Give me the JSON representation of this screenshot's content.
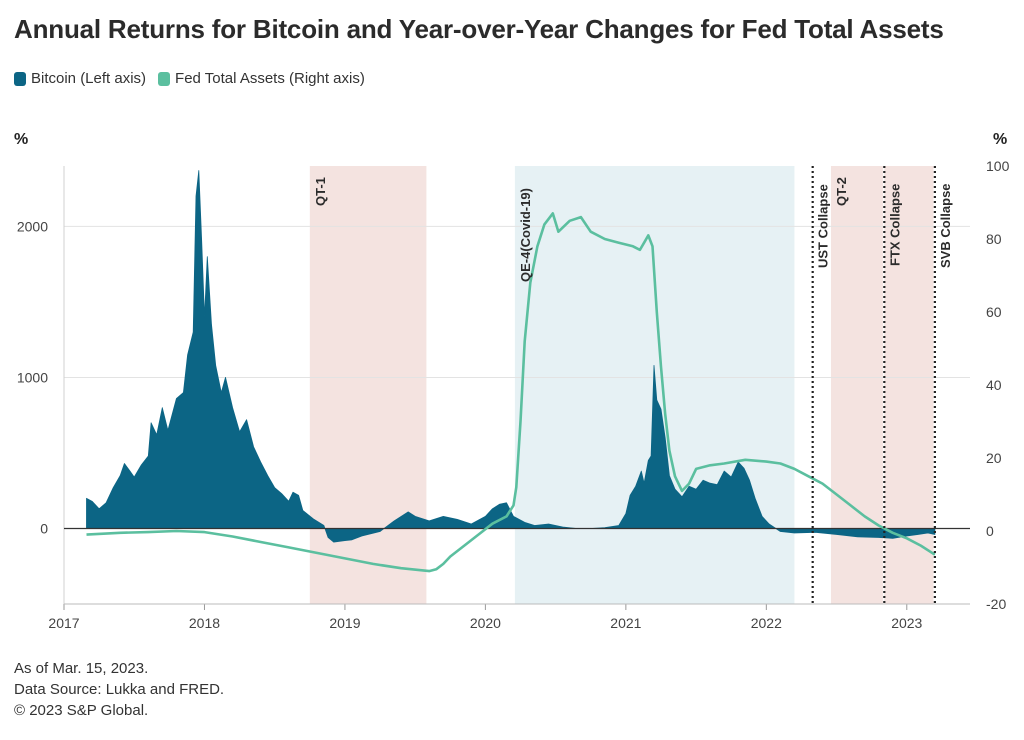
{
  "title": "Annual Returns for Bitcoin and Year-over-Year Changes for Fed Total Assets",
  "legend": [
    {
      "label": "Bitcoin (Left axis)",
      "color": "#0c6585"
    },
    {
      "label": "Fed Total Assets (Right axis)",
      "color": "#5bbf9f"
    }
  ],
  "footer": {
    "as_of": "As of Mar. 15, 2023.",
    "source": "Data Source: Lukka and FRED.",
    "copyright": "© 2023 S&P Global."
  },
  "chart_data": {
    "type": "area",
    "x_range": [
      2017.0,
      2023.45
    ],
    "x_ticks": [
      "2017",
      "2018",
      "2019",
      "2020",
      "2021",
      "2022",
      "2023"
    ],
    "left_axis": {
      "unit": "%",
      "ylim": [
        -500,
        2400
      ],
      "ticks": [
        0,
        1000,
        2000
      ]
    },
    "right_axis": {
      "unit": "%",
      "ylim": [
        -20,
        100
      ],
      "ticks": [
        -20,
        0,
        20,
        40,
        60,
        80,
        100
      ]
    },
    "series": [
      {
        "name": "Bitcoin (Left axis)",
        "axis": "left",
        "render": "area",
        "color": "#0c6585",
        "points": [
          [
            2017.16,
            200
          ],
          [
            2017.2,
            180
          ],
          [
            2017.25,
            130
          ],
          [
            2017.3,
            170
          ],
          [
            2017.35,
            270
          ],
          [
            2017.4,
            350
          ],
          [
            2017.43,
            430
          ],
          [
            2017.47,
            380
          ],
          [
            2017.5,
            340
          ],
          [
            2017.55,
            420
          ],
          [
            2017.6,
            480
          ],
          [
            2017.62,
            700
          ],
          [
            2017.66,
            620
          ],
          [
            2017.7,
            800
          ],
          [
            2017.74,
            650
          ],
          [
            2017.8,
            860
          ],
          [
            2017.85,
            900
          ],
          [
            2017.88,
            1150
          ],
          [
            2017.92,
            1300
          ],
          [
            2017.94,
            2200
          ],
          [
            2017.96,
            2370
          ],
          [
            2017.98,
            1900
          ],
          [
            2018.0,
            1400
          ],
          [
            2018.02,
            1800
          ],
          [
            2018.05,
            1350
          ],
          [
            2018.08,
            1080
          ],
          [
            2018.12,
            900
          ],
          [
            2018.15,
            1000
          ],
          [
            2018.2,
            800
          ],
          [
            2018.25,
            640
          ],
          [
            2018.3,
            720
          ],
          [
            2018.35,
            540
          ],
          [
            2018.4,
            440
          ],
          [
            2018.45,
            350
          ],
          [
            2018.5,
            270
          ],
          [
            2018.55,
            230
          ],
          [
            2018.6,
            180
          ],
          [
            2018.63,
            240
          ],
          [
            2018.67,
            220
          ],
          [
            2018.7,
            120
          ],
          [
            2018.74,
            90
          ],
          [
            2018.78,
            60
          ],
          [
            2018.85,
            20
          ],
          [
            2018.88,
            -60
          ],
          [
            2018.92,
            -90
          ],
          [
            2019.0,
            -80
          ],
          [
            2019.05,
            -75
          ],
          [
            2019.12,
            -50
          ],
          [
            2019.25,
            -20
          ],
          [
            2019.35,
            50
          ],
          [
            2019.45,
            110
          ],
          [
            2019.5,
            80
          ],
          [
            2019.6,
            50
          ],
          [
            2019.7,
            80
          ],
          [
            2019.8,
            60
          ],
          [
            2019.9,
            30
          ],
          [
            2020.0,
            80
          ],
          [
            2020.05,
            130
          ],
          [
            2020.1,
            160
          ],
          [
            2020.15,
            170
          ],
          [
            2020.2,
            80
          ],
          [
            2020.28,
            40
          ],
          [
            2020.35,
            20
          ],
          [
            2020.45,
            30
          ],
          [
            2020.55,
            10
          ],
          [
            2020.65,
            0
          ],
          [
            2020.75,
            0
          ],
          [
            2020.85,
            5
          ],
          [
            2020.95,
            20
          ],
          [
            2021.0,
            100
          ],
          [
            2021.03,
            220
          ],
          [
            2021.07,
            280
          ],
          [
            2021.11,
            380
          ],
          [
            2021.13,
            300
          ],
          [
            2021.16,
            450
          ],
          [
            2021.18,
            480
          ],
          [
            2021.2,
            1080
          ],
          [
            2021.22,
            850
          ],
          [
            2021.25,
            790
          ],
          [
            2021.28,
            600
          ],
          [
            2021.31,
            350
          ],
          [
            2021.35,
            260
          ],
          [
            2021.4,
            210
          ],
          [
            2021.45,
            280
          ],
          [
            2021.5,
            260
          ],
          [
            2021.55,
            320
          ],
          [
            2021.6,
            300
          ],
          [
            2021.65,
            290
          ],
          [
            2021.7,
            380
          ],
          [
            2021.75,
            340
          ],
          [
            2021.8,
            440
          ],
          [
            2021.84,
            400
          ],
          [
            2021.88,
            320
          ],
          [
            2021.92,
            200
          ],
          [
            2021.97,
            80
          ],
          [
            2022.02,
            30
          ],
          [
            2022.1,
            -20
          ],
          [
            2022.2,
            -30
          ],
          [
            2022.35,
            -25
          ],
          [
            2022.5,
            -40
          ],
          [
            2022.65,
            -55
          ],
          [
            2022.8,
            -60
          ],
          [
            2022.9,
            -65
          ],
          [
            2023.0,
            -50
          ],
          [
            2023.08,
            -40
          ],
          [
            2023.15,
            -30
          ],
          [
            2023.2,
            -40
          ]
        ]
      },
      {
        "name": "Fed Total Assets (Right axis)",
        "axis": "right",
        "render": "line",
        "color": "#5bbf9f",
        "points": [
          [
            2017.16,
            -1
          ],
          [
            2017.4,
            -0.5
          ],
          [
            2017.6,
            -0.3
          ],
          [
            2017.8,
            0
          ],
          [
            2018.0,
            -0.3
          ],
          [
            2018.2,
            -1.5
          ],
          [
            2018.4,
            -3
          ],
          [
            2018.6,
            -4.5
          ],
          [
            2018.8,
            -6
          ],
          [
            2019.0,
            -7.5
          ],
          [
            2019.2,
            -9
          ],
          [
            2019.4,
            -10.2
          ],
          [
            2019.6,
            -11
          ],
          [
            2019.65,
            -10.5
          ],
          [
            2019.7,
            -9
          ],
          [
            2019.75,
            -7
          ],
          [
            2019.85,
            -4
          ],
          [
            2019.95,
            -1
          ],
          [
            2020.05,
            2
          ],
          [
            2020.15,
            4
          ],
          [
            2020.2,
            7
          ],
          [
            2020.22,
            12
          ],
          [
            2020.25,
            30
          ],
          [
            2020.28,
            52
          ],
          [
            2020.32,
            68
          ],
          [
            2020.37,
            78
          ],
          [
            2020.42,
            84
          ],
          [
            2020.48,
            87
          ],
          [
            2020.52,
            82
          ],
          [
            2020.6,
            85
          ],
          [
            2020.68,
            86
          ],
          [
            2020.75,
            82
          ],
          [
            2020.85,
            80
          ],
          [
            2020.95,
            79
          ],
          [
            2021.05,
            78
          ],
          [
            2021.1,
            77
          ],
          [
            2021.13,
            79
          ],
          [
            2021.16,
            81
          ],
          [
            2021.19,
            78
          ],
          [
            2021.22,
            60
          ],
          [
            2021.25,
            45
          ],
          [
            2021.28,
            32
          ],
          [
            2021.31,
            22
          ],
          [
            2021.35,
            15
          ],
          [
            2021.4,
            11
          ],
          [
            2021.45,
            13
          ],
          [
            2021.5,
            17
          ],
          [
            2021.6,
            18
          ],
          [
            2021.7,
            18.5
          ],
          [
            2021.85,
            19.5
          ],
          [
            2022.0,
            19
          ],
          [
            2022.1,
            18.5
          ],
          [
            2022.2,
            17
          ],
          [
            2022.3,
            15
          ],
          [
            2022.4,
            13
          ],
          [
            2022.5,
            10
          ],
          [
            2022.6,
            7
          ],
          [
            2022.7,
            4
          ],
          [
            2022.8,
            1.5
          ],
          [
            2022.9,
            -0.5
          ],
          [
            2023.0,
            -2
          ],
          [
            2023.1,
            -4
          ],
          [
            2023.2,
            -6.5
          ]
        ]
      }
    ],
    "bands": [
      {
        "label": "QT-1",
        "start": 2018.75,
        "end": 2019.58,
        "color": "#f4e3e0"
      },
      {
        "label": "QE-4(Covid-19)",
        "start": 2020.21,
        "end": 2022.2,
        "color": "#e6f1f4"
      },
      {
        "label": "QT-2",
        "start": 2022.46,
        "end": 2022.83,
        "color": "#f4e3e0"
      },
      {
        "label": "",
        "start": 2022.84,
        "end": 2023.19,
        "color": "#f4e3e0"
      }
    ],
    "events": [
      {
        "label": "UST Collapse",
        "x": 2022.33
      },
      {
        "label": "FTX Collapse",
        "x": 2022.84
      },
      {
        "label": "SVB Collapse",
        "x": 2023.2
      }
    ],
    "grid": "horizontal"
  }
}
